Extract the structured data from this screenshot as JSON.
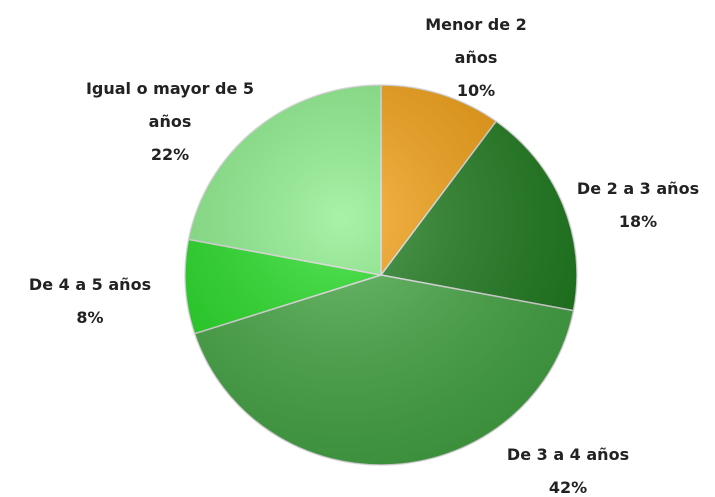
{
  "chart_data": {
    "type": "pie",
    "categories": [
      "Menor de 2 años",
      "De 2 a 3 años",
      "De 3 a 4 años",
      "De 4 a 5 años",
      "Igual o mayor de 5 años"
    ],
    "values": [
      10,
      18,
      42,
      8,
      22
    ],
    "value_labels": [
      "10%",
      "18%",
      "42%",
      "8%",
      "22%"
    ],
    "colors": [
      "#f4a010",
      "#1f7d1f",
      "#45a845",
      "#22dd22",
      "#8aee8a"
    ]
  }
}
